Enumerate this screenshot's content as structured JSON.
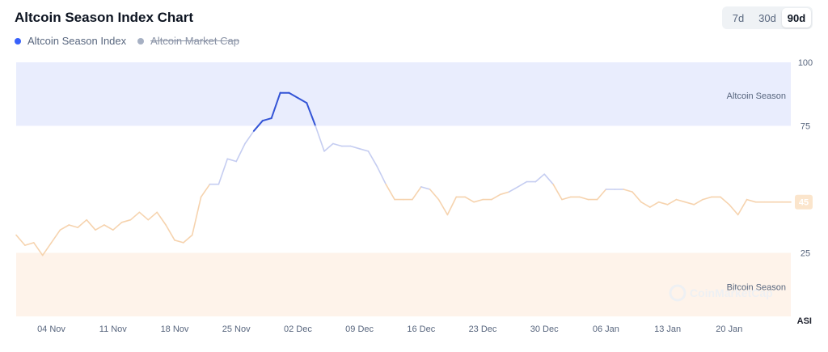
{
  "header": {
    "title": "Altcoin Season Index Chart"
  },
  "legend": [
    {
      "label": "Altcoin Season Index",
      "color": "#3861fb",
      "enabled": true
    },
    {
      "label": "Altcoin Market Cap",
      "color": "#a6b0c3",
      "enabled": false
    }
  ],
  "range_toggle": {
    "options": [
      "7d",
      "30d",
      "90d"
    ],
    "selected": "90d"
  },
  "watermark": {
    "text": "CoinMarketCap"
  },
  "colors": {
    "altcoin_zone": "#e9edfd",
    "bitcoin_zone": "#fef3ea",
    "altcoin_line": "#3354d6",
    "neutral_alt_line": "#c5cdf1",
    "neutral_btc_line": "#f6d3ae",
    "bitcoin_line": "#ee8a2e",
    "badge_bg": "#fbe5cc",
    "badge_text": "#ffffff"
  },
  "chart_data": {
    "type": "line",
    "title": "Altcoin Season Index Chart",
    "ylabel": "ASI",
    "ylim": [
      0,
      100
    ],
    "yticks": [
      25,
      75,
      100
    ],
    "xtick_labels": [
      "04 Nov",
      "11 Nov",
      "18 Nov",
      "25 Nov",
      "02 Dec",
      "09 Dec",
      "16 Dec",
      "23 Dec",
      "30 Dec",
      "06 Jan",
      "13 Jan",
      "20 Jan"
    ],
    "zones": [
      {
        "label": "Altcoin Season",
        "from": 75,
        "to": 100
      },
      {
        "label": "Bitcoin Season",
        "from": 0,
        "to": 25
      }
    ],
    "current_value": 45,
    "legend_position": "top-left",
    "grid": false,
    "series": [
      {
        "name": "Altcoin Season Index",
        "x": [
          "2024-10-31",
          "2024-11-01",
          "2024-11-02",
          "2024-11-03",
          "2024-11-04",
          "2024-11-05",
          "2024-11-06",
          "2024-11-07",
          "2024-11-08",
          "2024-11-09",
          "2024-11-10",
          "2024-11-11",
          "2024-11-12",
          "2024-11-13",
          "2024-11-14",
          "2024-11-15",
          "2024-11-16",
          "2024-11-17",
          "2024-11-18",
          "2024-11-19",
          "2024-11-20",
          "2024-11-21",
          "2024-11-22",
          "2024-11-23",
          "2024-11-24",
          "2024-11-25",
          "2024-11-26",
          "2024-11-27",
          "2024-11-28",
          "2024-11-29",
          "2024-11-30",
          "2024-12-01",
          "2024-12-02",
          "2024-12-03",
          "2024-12-04",
          "2024-12-05",
          "2024-12-06",
          "2024-12-07",
          "2024-12-08",
          "2024-12-09",
          "2024-12-10",
          "2024-12-11",
          "2024-12-12",
          "2024-12-13",
          "2024-12-14",
          "2024-12-15",
          "2024-12-16",
          "2024-12-17",
          "2024-12-18",
          "2024-12-19",
          "2024-12-20",
          "2024-12-21",
          "2024-12-22",
          "2024-12-23",
          "2024-12-24",
          "2024-12-25",
          "2024-12-26",
          "2024-12-27",
          "2024-12-28",
          "2024-12-29",
          "2024-12-30",
          "2024-12-31",
          "2025-01-01",
          "2025-01-02",
          "2025-01-03",
          "2025-01-04",
          "2025-01-05",
          "2025-01-06",
          "2025-01-07",
          "2025-01-08",
          "2025-01-09",
          "2025-01-10",
          "2025-01-11",
          "2025-01-12",
          "2025-01-13",
          "2025-01-14",
          "2025-01-15",
          "2025-01-16",
          "2025-01-17",
          "2025-01-18",
          "2025-01-19",
          "2025-01-20",
          "2025-01-21",
          "2025-01-22",
          "2025-01-23",
          "2025-01-24",
          "2025-01-25",
          "2025-01-26",
          "2025-01-27"
        ],
        "values": [
          32,
          28,
          29,
          24,
          29,
          34,
          36,
          35,
          38,
          34,
          36,
          34,
          37,
          38,
          41,
          38,
          41,
          36,
          30,
          29,
          32,
          47,
          52,
          52,
          62,
          61,
          68,
          73,
          77,
          78,
          88,
          88,
          86,
          84,
          75,
          65,
          68,
          67,
          67,
          66,
          65,
          59,
          52,
          46,
          46,
          46,
          51,
          50,
          46,
          40,
          47,
          47,
          45,
          46,
          46,
          48,
          49,
          51,
          53,
          53,
          56,
          52,
          46,
          47,
          47,
          46,
          46,
          50,
          50,
          50,
          49,
          45,
          43,
          45,
          44,
          46,
          45,
          44,
          46,
          47,
          47,
          44,
          40,
          46,
          45,
          45,
          45,
          45,
          45
        ],
        "value_labels": {
          "last": "45"
        }
      }
    ]
  }
}
